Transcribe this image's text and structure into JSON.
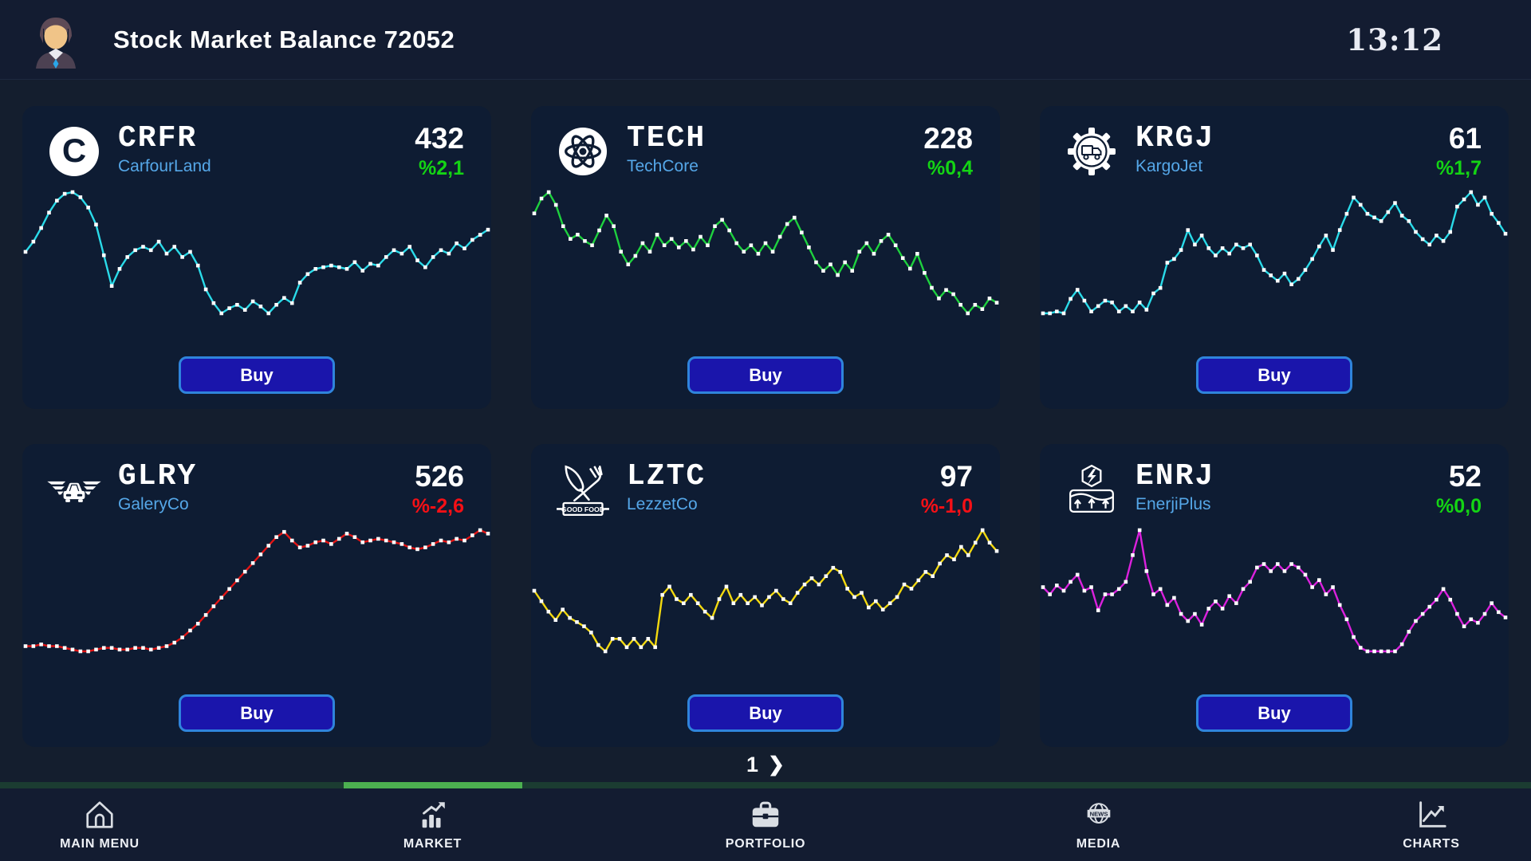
{
  "header": {
    "title": "Stock Market Balance 72052",
    "time": "13:12",
    "avatar_icon": "businessman-avatar"
  },
  "labels": {
    "buy": "Buy"
  },
  "status_colors": {
    "positive": "#14d414",
    "negative": "#f51016"
  },
  "stocks": [
    {
      "ticker": "CRFR",
      "company": "CarfourLand",
      "price": "432",
      "change": "%2,1",
      "direction": "up",
      "logo_icon": "carfourland-c-logo-icon",
      "logo_letter": "C"
    },
    {
      "ticker": "TECH",
      "company": "TechCore",
      "price": "228",
      "change": "%0,4",
      "direction": "up",
      "logo_icon": "techcore-atom-logo-icon"
    },
    {
      "ticker": "KRGJ",
      "company": "KargoJet",
      "price": "61",
      "change": "%1,7",
      "direction": "up",
      "logo_icon": "kargojet-gear-truck-logo-icon"
    },
    {
      "ticker": "GLRY",
      "company": "GaleryCo",
      "price": "526",
      "change": "%-2,6",
      "direction": "down",
      "logo_icon": "galeryco-winged-car-logo-icon"
    },
    {
      "ticker": "LZTC",
      "company": "LezzetCo",
      "price": "97",
      "change": "%-1,0",
      "direction": "down",
      "logo_icon": "lezzetco-good-food-logo-icon",
      "banner_text": "GOOD FOOD"
    },
    {
      "ticker": "ENRJ",
      "company": "EnerjiPlus",
      "price": "52",
      "change": "%0,0",
      "direction": "up",
      "logo_icon": "enerjiplus-power-plant-logo-icon"
    }
  ],
  "pagination": {
    "current_page": "1",
    "next_icon": "❯"
  },
  "nav": {
    "active_indicator_color": "#4cb050",
    "items": [
      {
        "label": "MAIN MENU",
        "icon": "home-icon",
        "active": false
      },
      {
        "label": "MARKET",
        "icon": "market-bars-icon",
        "active": true
      },
      {
        "label": "PORTFOLIO",
        "icon": "briefcase-icon",
        "active": false
      },
      {
        "label": "MEDIA",
        "icon": "news-globe-icon",
        "active": false
      },
      {
        "label": "CHARTS",
        "icon": "chart-axes-icon",
        "active": false
      }
    ]
  },
  "chart_data": [
    {
      "type": "line",
      "stock": "CRFR",
      "color": "#2adbe9",
      "marker_color": "#ffffff",
      "grid": false,
      "legend": "none",
      "values": [
        60,
        66,
        74,
        83,
        90,
        94,
        95,
        92,
        86,
        76,
        58,
        40,
        50,
        57,
        61,
        63,
        61,
        66,
        59,
        63,
        57,
        60,
        52,
        38,
        30,
        24,
        27,
        29,
        26,
        31,
        28,
        24,
        29,
        33,
        30,
        42,
        47,
        50,
        51,
        52,
        51,
        50,
        54,
        49,
        53,
        52,
        57,
        61,
        59,
        63,
        55,
        51,
        57,
        61,
        59,
        65,
        62,
        67,
        70,
        73
      ]
    },
    {
      "type": "line",
      "stock": "TECH",
      "color": "#1ed13e",
      "marker_color": "#ffffff",
      "grid": false,
      "legend": "none",
      "values": [
        76,
        83,
        86,
        80,
        70,
        64,
        66,
        63,
        61,
        68,
        75,
        70,
        58,
        52,
        56,
        62,
        58,
        66,
        61,
        64,
        60,
        63,
        59,
        65,
        61,
        70,
        73,
        68,
        62,
        58,
        61,
        57,
        62,
        58,
        65,
        71,
        74,
        67,
        60,
        53,
        49,
        52,
        47,
        53,
        49,
        58,
        62,
        57,
        63,
        66,
        61,
        55,
        50,
        57,
        48,
        41,
        36,
        40,
        38,
        33,
        29,
        33,
        31,
        36,
        34
      ]
    },
    {
      "type": "line",
      "stock": "KRGJ",
      "color": "#2adbe9",
      "marker_color": "#ffffff",
      "grid": false,
      "legend": "none",
      "values": [
        20,
        20,
        21,
        20,
        28,
        33,
        27,
        21,
        24,
        27,
        26,
        21,
        24,
        21,
        26,
        22,
        31,
        34,
        48,
        50,
        55,
        66,
        58,
        63,
        56,
        52,
        56,
        53,
        58,
        56,
        58,
        52,
        44,
        41,
        38,
        42,
        36,
        39,
        44,
        50,
        57,
        63,
        55,
        66,
        75,
        84,
        80,
        75,
        73,
        71,
        76,
        81,
        74,
        71,
        65,
        61,
        58,
        63,
        60,
        65,
        79,
        83,
        87,
        80,
        84,
        75,
        70,
        64
      ]
    },
    {
      "type": "line",
      "stock": "GLRY",
      "color": "#e31414",
      "marker_color": "#ffffff",
      "grid": false,
      "legend": "none",
      "values": [
        17,
        17,
        18,
        17,
        17,
        16,
        15,
        14,
        14,
        15,
        16,
        16,
        15,
        15,
        16,
        16,
        15,
        16,
        17,
        19,
        22,
        26,
        30,
        35,
        40,
        45,
        50,
        55,
        60,
        65,
        70,
        75,
        80,
        83,
        78,
        74,
        75,
        77,
        78,
        76,
        79,
        82,
        80,
        77,
        78,
        79,
        78,
        77,
        76,
        74,
        73,
        74,
        76,
        78,
        77,
        79,
        78,
        81,
        84,
        82
      ]
    },
    {
      "type": "line",
      "stock": "LZTC",
      "color": "#f3d90f",
      "marker_color": "#ffffff",
      "grid": false,
      "legend": "none",
      "values": [
        56,
        51,
        46,
        42,
        47,
        43,
        41,
        39,
        36,
        30,
        27,
        33,
        33,
        29,
        33,
        29,
        33,
        29,
        54,
        58,
        52,
        50,
        54,
        50,
        46,
        43,
        52,
        58,
        50,
        54,
        50,
        53,
        49,
        53,
        56,
        52,
        50,
        55,
        59,
        62,
        59,
        63,
        67,
        65,
        57,
        53,
        55,
        48,
        51,
        47,
        50,
        53,
        59,
        57,
        61,
        65,
        63,
        69,
        73,
        71,
        77,
        73,
        79,
        85,
        79,
        75
      ]
    },
    {
      "type": "line",
      "stock": "ENRJ",
      "color": "#db21dd",
      "marker_color": "#ffffff",
      "grid": false,
      "legend": "none",
      "values": [
        62,
        58,
        63,
        60,
        65,
        69,
        60,
        62,
        49,
        58,
        58,
        61,
        65,
        80,
        94,
        71,
        58,
        61,
        52,
        56,
        47,
        43,
        47,
        41,
        50,
        54,
        50,
        57,
        53,
        61,
        65,
        73,
        75,
        71,
        75,
        71,
        75,
        73,
        69,
        62,
        66,
        58,
        62,
        52,
        44,
        34,
        28,
        26,
        26,
        26,
        26,
        26,
        30,
        37,
        43,
        47,
        51,
        55,
        61,
        55,
        47,
        40,
        44,
        42,
        47,
        53,
        48,
        45
      ]
    }
  ]
}
